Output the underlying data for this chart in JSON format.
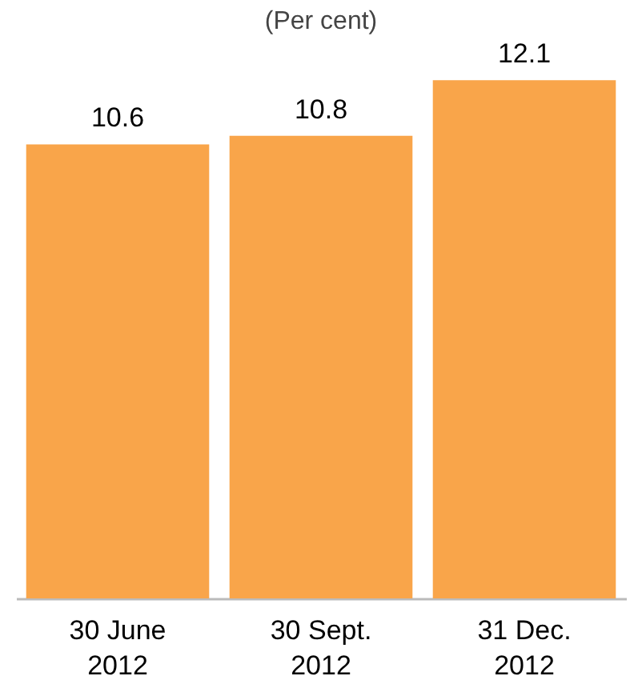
{
  "chart_data": {
    "type": "bar",
    "subtitle": "(Per cent)",
    "categories": [
      "30 June 2012",
      "30 Sept. 2012",
      "31 Dec. 2012"
    ],
    "values": [
      10.6,
      10.8,
      12.1
    ],
    "color": "#f9a54a",
    "data_labels": true
  }
}
